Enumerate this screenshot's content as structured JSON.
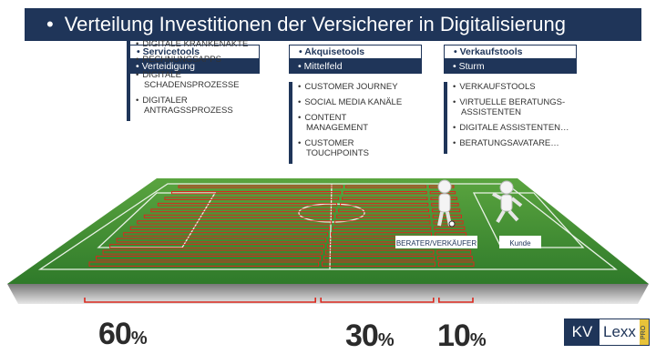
{
  "title": "Verteilung Investitionen der Versicherer in Digitalisierung",
  "columns": [
    {
      "heading": "Servicetools",
      "subheading": "Verteidigung",
      "items": [
        "DIGITALE KRANKENAKTE",
        "RECHNUNGSAPPS",
        "DIGITALE SCHADENSPROZESSE",
        "DIGITALER ANTRAGSSPROZESS"
      ]
    },
    {
      "heading": "Akquisetools",
      "subheading": "Mittelfeld",
      "items": [
        "CUSTOMER JOURNEY",
        "SOCIAL MEDIA KANÄLE",
        "CONTENT MANAGEMENT",
        "CUSTOMER TOUCHPOINTS"
      ]
    },
    {
      "heading": "Verkaufstools",
      "subheading": "Sturm",
      "items": [
        "VERKAUFSTOOLS",
        "VIRTUELLE BERATUNGS-ASSISTENTEN",
        "DIGITALE ASSISTENTEN…",
        "BERATUNGSAVATARE…"
      ]
    }
  ],
  "field": {
    "label_advisor": "BERATER/VERKÄUFER",
    "label_customer": "Kunde",
    "stripe_color": "#d9281e",
    "grass_color": "#3f8f33"
  },
  "shares": [
    {
      "value": "60",
      "unit": "%",
      "fraction": 0.6
    },
    {
      "value": "30",
      "unit": "%",
      "fraction": 0.3
    },
    {
      "value": "10",
      "unit": "%",
      "fraction": 0.1
    }
  ],
  "logo": {
    "part1": "KV",
    "part2": "Lexx",
    "tag": "PRO"
  }
}
